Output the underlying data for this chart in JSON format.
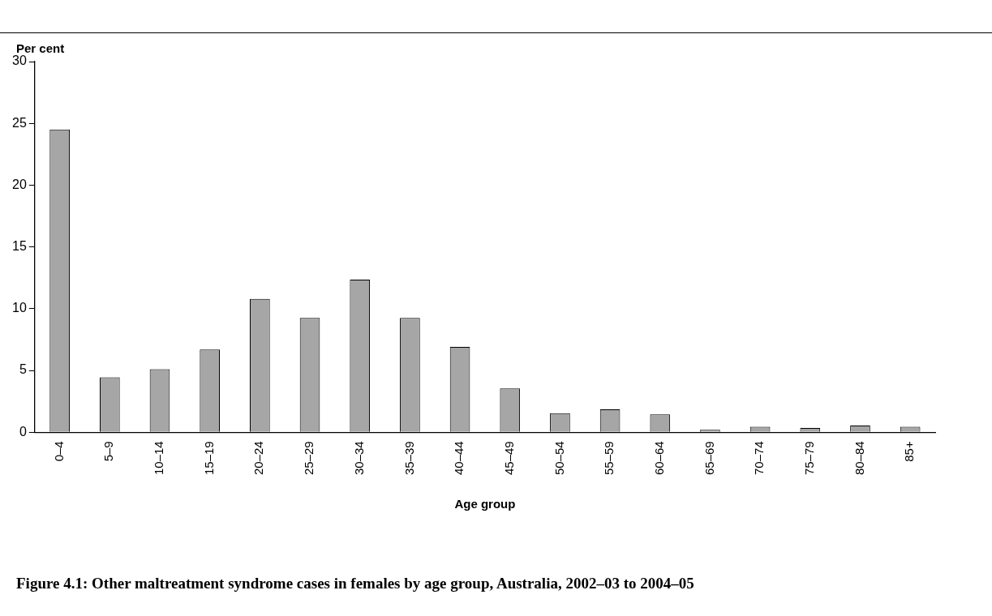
{
  "chart_data": {
    "type": "bar",
    "title": "Figure 4.1: Other maltreatment syndrome cases in females by age group, Australia, 2002–03 to 2004–05",
    "xlabel": "Age group",
    "ylabel": "Per cent",
    "categories": [
      "0–4",
      "5–9",
      "10–14",
      "15–19",
      "20–24",
      "25–29",
      "30–34",
      "35–39",
      "40–44",
      "45–49",
      "50–54",
      "55–59",
      "60–64",
      "65–69",
      "70–74",
      "75–79",
      "80–84",
      "85+"
    ],
    "values": [
      24.5,
      4.45,
      5.1,
      6.7,
      10.8,
      9.25,
      12.35,
      9.25,
      6.9,
      3.55,
      1.55,
      1.85,
      1.45,
      0.2,
      0.45,
      0.35,
      0.55,
      0.45
    ],
    "color": "#a6a6a6",
    "ylim": [
      0,
      30
    ],
    "yticks": [
      0,
      5,
      10,
      15,
      20,
      25,
      30
    ],
    "grid": false,
    "legend": false
  }
}
